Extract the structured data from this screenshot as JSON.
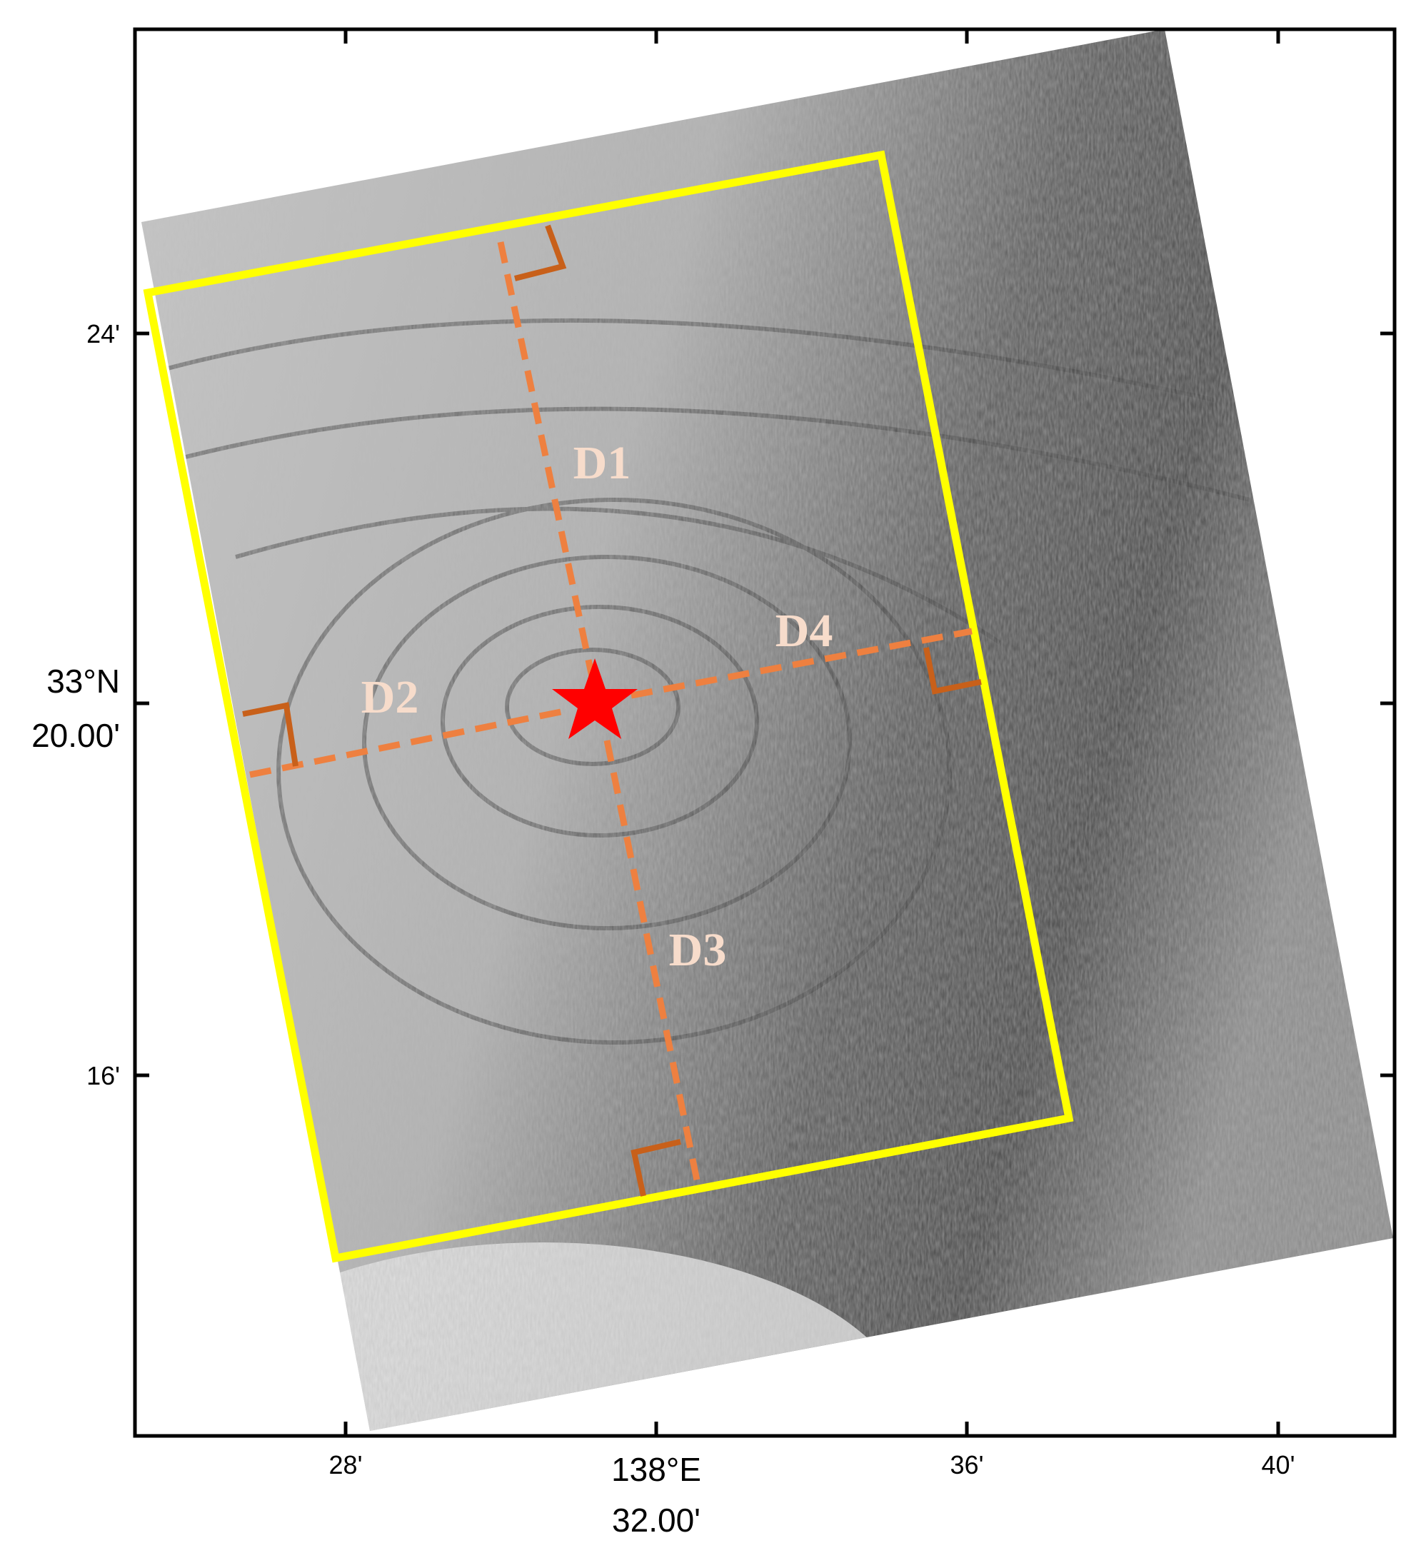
{
  "map": {
    "left_ticks": [
      "24'",
      "16'"
    ],
    "left_center": [
      "33°N",
      "20.00'"
    ],
    "bottom_ticks": [
      "28'",
      "36'",
      "40'"
    ],
    "bottom_center": [
      "138°E",
      "32.00'"
    ],
    "sections": [
      "D1",
      "D2",
      "D3",
      "D4"
    ]
  }
}
